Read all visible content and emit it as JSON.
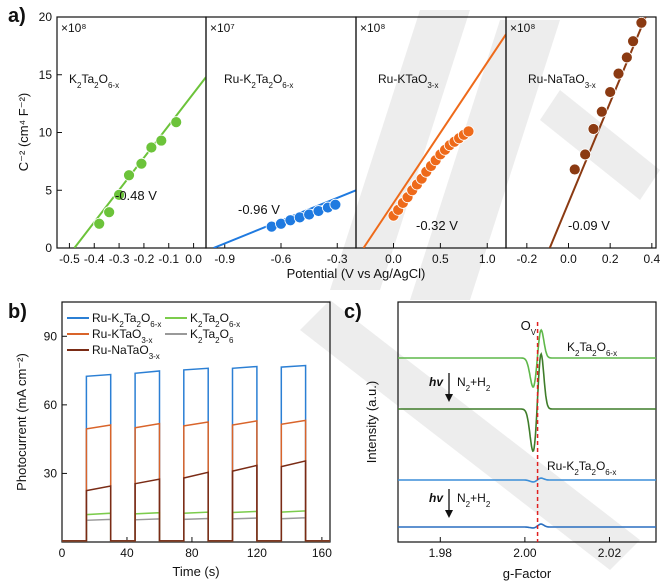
{
  "panels": {
    "a": "a)",
    "b": "b)",
    "c": "c)"
  },
  "chart_data": [
    {
      "id": "a",
      "type": "scatter",
      "ylabel": "C⁻² (cm⁴ F⁻²)",
      "xlabel": "Potential (V vs Ag/AgCl)",
      "ylim": [
        0,
        20
      ],
      "yticks": [
        0,
        5,
        10,
        15,
        20
      ],
      "subplots": [
        {
          "label_main": "K",
          "label_sub1": "2",
          "label_mid": "Ta",
          "label_sub2": "2",
          "label_tail": "O",
          "label_sub3": "6-x",
          "multiplier": "×10⁸",
          "flatband": "-0.48 V",
          "color": "#6cc33a",
          "xlim": [
            -0.55,
            0.05
          ],
          "xticks": [
            -0.5,
            -0.4,
            -0.3,
            -0.2,
            -0.1,
            0.0
          ],
          "fit": [
            [
              -0.48,
              0
            ],
            [
              0.05,
              14.8
            ]
          ],
          "x": [
            -0.38,
            -0.34,
            -0.3,
            -0.26,
            -0.21,
            -0.17,
            -0.13,
            -0.07
          ],
          "y": [
            2.1,
            3.1,
            4.6,
            6.3,
            7.3,
            8.7,
            9.3,
            10.9
          ]
        },
        {
          "label_main": "Ru-K",
          "label_sub1": "2",
          "label_mid": "Ta",
          "label_sub2": "2",
          "label_tail": "O",
          "label_sub3": "6-x",
          "multiplier": "×10⁷",
          "flatband": "-0.96 V",
          "color": "#1f7ae0",
          "xlim": [
            -1.0,
            -0.2
          ],
          "xticks": [
            -0.9,
            -0.6,
            -0.3
          ],
          "fit": [
            [
              -0.96,
              0
            ],
            [
              -0.2,
              5.0
            ]
          ],
          "x": [
            -0.65,
            -0.6,
            -0.55,
            -0.5,
            -0.45,
            -0.4,
            -0.35,
            -0.31
          ],
          "y": [
            1.85,
            2.1,
            2.4,
            2.65,
            2.9,
            3.2,
            3.5,
            3.75
          ]
        },
        {
          "label_main": "Ru-KTaO",
          "label_sub1": "3-x",
          "label_mid": "",
          "label_sub2": "",
          "label_tail": "",
          "label_sub3": "",
          "multiplier": "×10⁸",
          "flatband": "-0.32 V",
          "color": "#ee6a1a",
          "xlim": [
            -0.4,
            1.2
          ],
          "xticks": [
            0.0,
            0.5,
            1.0
          ],
          "fit": [
            [
              -0.32,
              0
            ],
            [
              1.2,
              18.5
            ]
          ],
          "x": [
            0.0,
            0.05,
            0.1,
            0.15,
            0.2,
            0.25,
            0.3,
            0.35,
            0.4,
            0.45,
            0.5,
            0.55,
            0.6,
            0.65,
            0.7,
            0.75,
            0.8
          ],
          "y": [
            2.8,
            3.3,
            3.9,
            4.4,
            5.0,
            5.5,
            6.0,
            6.6,
            7.1,
            7.6,
            8.1,
            8.5,
            8.9,
            9.2,
            9.5,
            9.8,
            10.1
          ]
        },
        {
          "label_main": "Ru-NaTaO",
          "label_sub1": "3-x",
          "label_mid": "",
          "label_sub2": "",
          "label_tail": "",
          "label_sub3": "",
          "multiplier": "×10⁸",
          "flatband": "-0.09 V",
          "color": "#8b3a12",
          "xlim": [
            -0.3,
            0.42
          ],
          "xticks": [
            -0.2,
            0.0,
            0.2,
            0.4
          ],
          "fit": [
            [
              -0.09,
              0
            ],
            [
              0.37,
              20.0
            ]
          ],
          "x": [
            0.03,
            0.08,
            0.12,
            0.16,
            0.2,
            0.24,
            0.28,
            0.31,
            0.35
          ],
          "y": [
            6.8,
            8.1,
            10.3,
            11.8,
            13.5,
            15.1,
            16.5,
            17.9,
            19.5
          ]
        }
      ]
    },
    {
      "id": "b",
      "type": "line",
      "xlabel": "Time (s)",
      "ylabel": "Photocurrent (mA cm⁻²)",
      "xlim": [
        0,
        165
      ],
      "ylim": [
        0,
        105
      ],
      "xticks": [
        0,
        40,
        80,
        120,
        160
      ],
      "yticks": [
        30,
        60,
        90
      ],
      "on_intervals": [
        [
          15,
          30
        ],
        [
          45,
          60
        ],
        [
          75,
          90
        ],
        [
          105,
          120
        ],
        [
          135,
          150
        ]
      ],
      "series": [
        {
          "name": "Ru-K₂Ta₂O₆₋ₓ",
          "color": "#2b7fd4",
          "on_start": [
            72.5,
            73.8,
            75.3,
            76.0,
            76.5
          ],
          "on_end": [
            73.3,
            74.8,
            76.0,
            76.8,
            77.2
          ]
        },
        {
          "name": "K₂Ta₂O₆₋ₓ",
          "color": "#7ccc4c",
          "on_start": [
            12.0,
            12.3,
            12.6,
            12.9,
            13.1
          ],
          "on_end": [
            12.6,
            12.8,
            13.1,
            13.4,
            13.6
          ]
        },
        {
          "name": "Ru-KTaO₃₋ₓ",
          "color": "#d9642a",
          "on_start": [
            49.5,
            50.0,
            50.8,
            51.2,
            51.5
          ],
          "on_end": [
            51.2,
            51.8,
            52.5,
            53.0,
            53.2
          ]
        },
        {
          "name": "K₂Ta₂O₆",
          "color": "#999999",
          "on_start": [
            9.5,
            9.7,
            9.9,
            10.1,
            10.2
          ],
          "on_end": [
            9.9,
            10.1,
            10.3,
            10.5,
            10.6
          ]
        },
        {
          "name": "Ru-NaTaO₃₋ₓ",
          "color": "#7a2b15",
          "on_start": [
            22.5,
            25.5,
            28.0,
            31.0,
            33.0
          ],
          "on_end": [
            24.5,
            27.5,
            30.5,
            33.5,
            35.5
          ]
        }
      ],
      "legend": [
        {
          "name": "Ru-K",
          "s1": "2",
          "m": "Ta",
          "s2": "2",
          "t": "O",
          "s3": "6-x"
        },
        {
          "name": "K",
          "s1": "2",
          "m": "Ta",
          "s2": "2",
          "t": "O",
          "s3": "6-x"
        },
        {
          "name": "Ru-KTaO",
          "s1": "3-x",
          "m": "",
          "s2": "",
          "t": "",
          "s3": ""
        },
        {
          "name": "K",
          "s1": "2",
          "m": "Ta",
          "s2": "2",
          "t": "O",
          "s3": "6"
        },
        {
          "name": "Ru-NaTaO",
          "s1": "3-x",
          "m": "",
          "s2": "",
          "t": "",
          "s3": ""
        }
      ]
    },
    {
      "id": "c",
      "type": "line",
      "xlabel": "g-Factor",
      "ylabel": "Intensity (a.u.)",
      "xlim": [
        1.97,
        2.031
      ],
      "xticks": [
        1.98,
        2.0,
        2.02
      ],
      "ov_label": "O",
      "ov_sub": "V",
      "ov_g": 2.003,
      "label_k2": {
        "main": "K",
        "s1": "2",
        "m": "Ta",
        "s2": "2",
        "t": "O",
        "s3": "6-x"
      },
      "label_ru": {
        "main": "Ru-K",
        "s1": "2",
        "m": "Ta",
        "s2": "2",
        "t": "O",
        "s3": "6-x"
      },
      "hv": "hv",
      "treat": "N",
      "treat_sub": "2",
      "treat_tail": "+H",
      "treat_sub2": "2",
      "curves": [
        {
          "color": "#5fb84a",
          "baseline": 358,
          "amp_up": 30,
          "amp_down": 30
        },
        {
          "color": "#3f7d2a",
          "baseline": 409,
          "amp_up": 58,
          "amp_down": 44
        },
        {
          "color": "#3b8ed8",
          "baseline": 480,
          "amp_up": 2,
          "amp_down": 2
        },
        {
          "color": "#2a6fc0",
          "baseline": 527,
          "amp_up": 3,
          "amp_down": 1
        }
      ]
    }
  ]
}
